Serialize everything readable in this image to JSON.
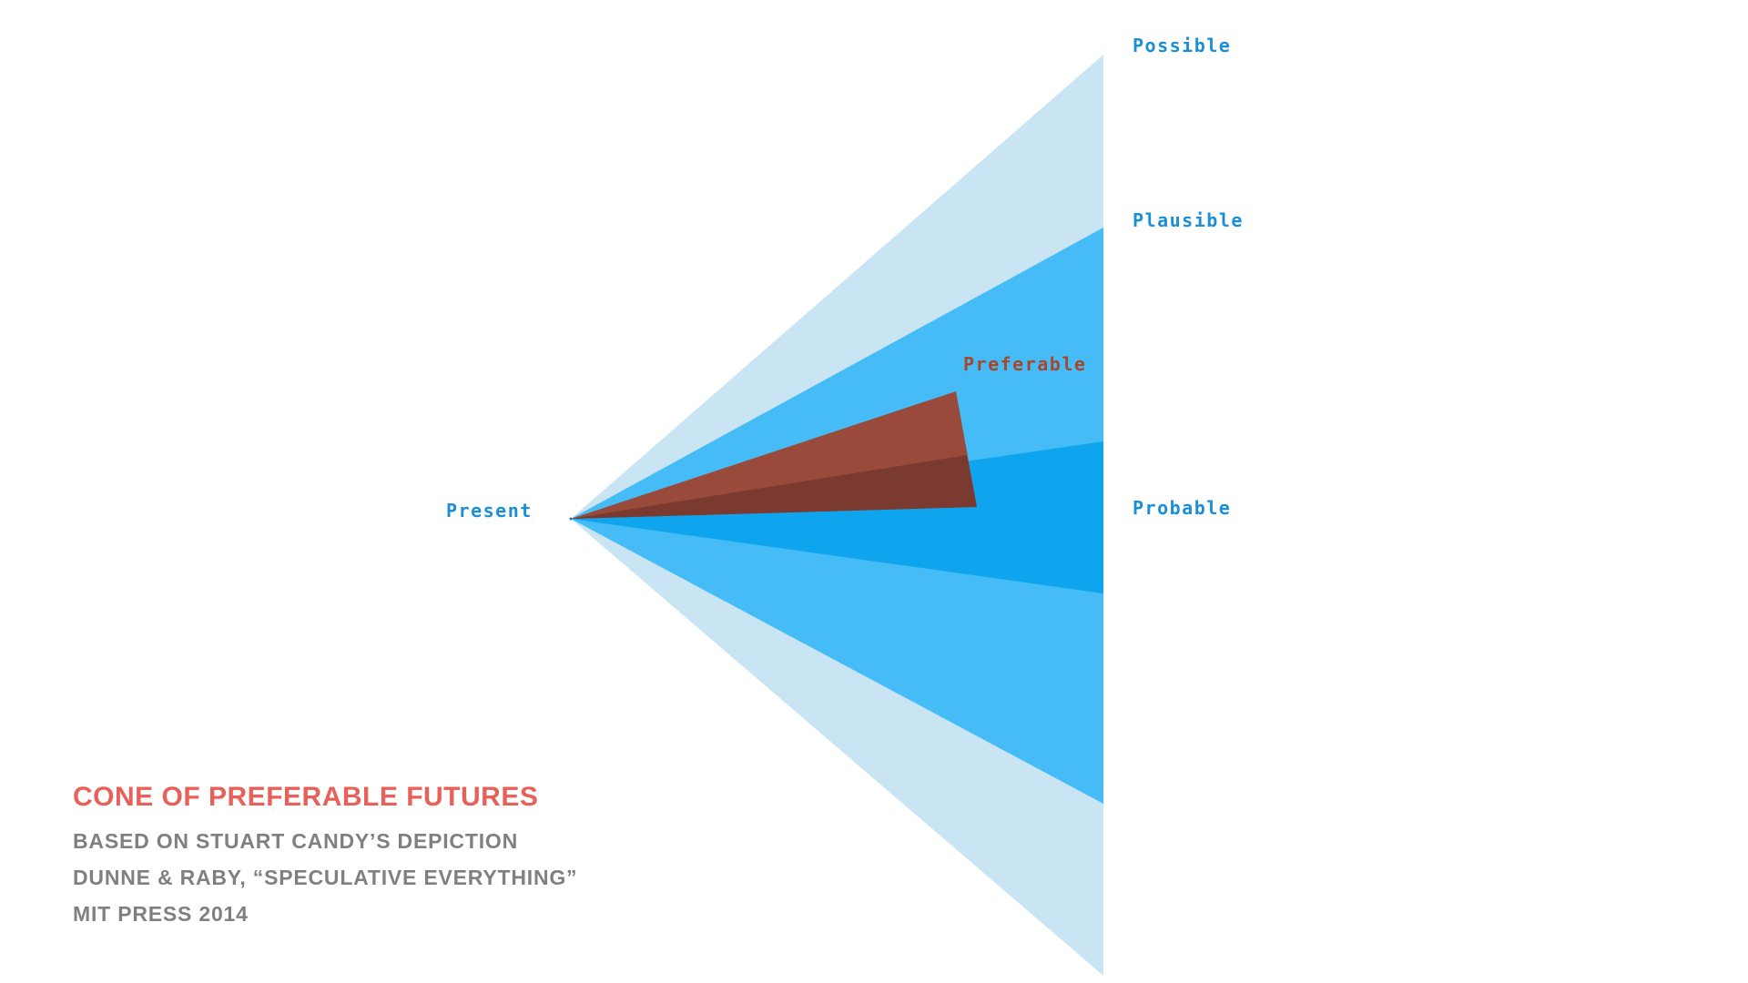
{
  "diagram": {
    "labels": {
      "possible": "Possible",
      "plausible": "Plausible",
      "preferable": "Preferable",
      "probable": "Probable",
      "present": "Present"
    },
    "colors": {
      "possible_cone": "#c9e4f3",
      "plausible_cone": "#45bcf5",
      "probable_cone": "#0ea5ee",
      "preferable_cone": "#9a4a3a",
      "label_blue": "#1b8fd6",
      "label_brown": "#a8472f"
    }
  },
  "caption": {
    "title": "CONE OF PREFERABLE FUTURES",
    "lines": [
      "BASED ON STUART CANDY’S DEPICTION",
      "DUNNE & RABY, “SPECULATIVE EVERYTHING”",
      "MIT PRESS 2014"
    ],
    "title_color": "#e8605a",
    "text_color": "#808080"
  }
}
